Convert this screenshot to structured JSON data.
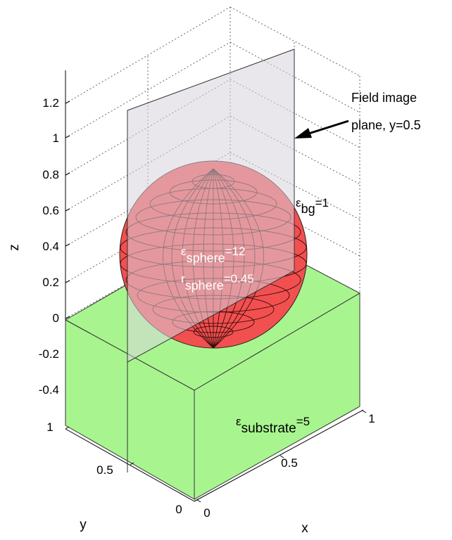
{
  "axes": {
    "z_label": "z",
    "y_label": "y",
    "x_label": "x",
    "z_ticks": [
      "1.2",
      "1",
      "0.8",
      "0.6",
      "0.4",
      "0.2",
      "0",
      "-0.2",
      "-0.4"
    ],
    "y_ticks": [
      "1",
      "0.5",
      "0"
    ],
    "x_ticks": [
      "0",
      "0.5",
      "1"
    ]
  },
  "annotations": {
    "field_plane_line1": "Field image",
    "field_plane_line2": "plane, y=0.5",
    "eps_bg": {
      "sym": "ε",
      "sub": "bg",
      "val": "=1"
    },
    "eps_sphere": {
      "sym": "ε",
      "sub": "sphere",
      "val": "=12"
    },
    "r_sphere": {
      "sym": "r",
      "sub": "sphere",
      "val": "=0.45"
    },
    "eps_substrate": {
      "sym": "ε",
      "sub": "substrate",
      "val": "=5"
    }
  },
  "colors": {
    "sphere": "#f25050",
    "substrate": "#a8f58f",
    "plane": "#d8d3dc"
  }
}
